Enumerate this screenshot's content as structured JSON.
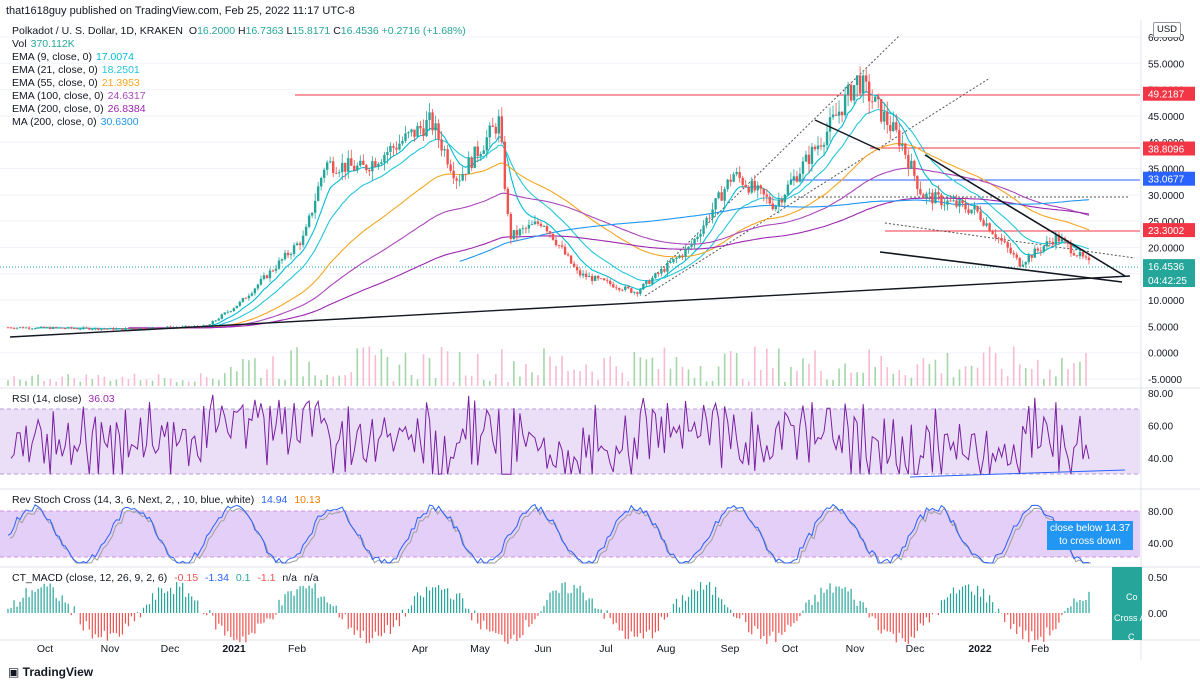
{
  "header": {
    "publisher": "that1618guy published on TradingView.com, Feb 25, 2022 11:17 UTC-8"
  },
  "symbol_line": {
    "title": "Polkadot / U. S. Dollar, 1D, KRAKEN",
    "open_label": "O",
    "open": "16.2000",
    "high_label": "H",
    "high": "16.7363",
    "low_label": "L",
    "low": "15.8171",
    "close_label": "C",
    "close": "16.4536",
    "change": "+0.2716 (+1.68%)"
  },
  "indicators": [
    {
      "label": "Vol",
      "value": "370.112K",
      "color": "#26a69a"
    },
    {
      "label": "EMA (9, close, 0)",
      "value": "17.0074",
      "color": "#00bcd4"
    },
    {
      "label": "EMA (21, close, 0)",
      "value": "18.2501",
      "color": "#26c6da"
    },
    {
      "label": "EMA (55, close, 0)",
      "value": "21.3953",
      "color": "#f5a623"
    },
    {
      "label": "EMA (100, close, 0)",
      "value": "24.6317",
      "color": "#ab47bc"
    },
    {
      "label": "EMA (200, close, 0)",
      "value": "26.8384",
      "color": "#9c27b0"
    },
    {
      "label": "MA (200, close, 0)",
      "value": "30.6300",
      "color": "#2196f3"
    }
  ],
  "currency_button": "USD",
  "price_axis": {
    "ticks": [
      "60.0000",
      "55.0000",
      "50.0000",
      "45.0000",
      "40.0000",
      "35.0000",
      "30.0000",
      "25.0000",
      "20.0000",
      "15.0000",
      "10.0000",
      "5.0000",
      "0.0000",
      "-5.0000"
    ],
    "badges": [
      {
        "text": "49.2187",
        "color": "#f23645"
      },
      {
        "text": "38.8096",
        "color": "#f23645"
      },
      {
        "text": "33.0677",
        "color": "#2962ff"
      },
      {
        "text": "23.3002",
        "color": "#f23645"
      },
      {
        "text": "16.4536",
        "color": "#26a69a"
      },
      {
        "text": "04:42:25",
        "color": "#26a69a"
      }
    ]
  },
  "rsi": {
    "title": "RSI (14, close)",
    "value": "36.03",
    "ticks": [
      "80.00",
      "60.00",
      "40.00"
    ]
  },
  "stoch": {
    "title": "Rev Stoch Cross (14, 3, 6, Next, 2, , 10, blue, white)",
    "value1": "14.94",
    "value2": "10.13",
    "ticks": [
      "80.00",
      "40.00"
    ],
    "note_line1": "close below 14.37",
    "note_line2": "to cross down"
  },
  "macd": {
    "title": "CT_MACD (close, 12, 26, 9, 2, 6)",
    "v1": "-0.15",
    "v2": "-1.34",
    "v3": "0.1",
    "v4": "-1.1",
    "v5": "n/a",
    "v6": "n/a",
    "ticks": [
      "0.50",
      "0.00"
    ],
    "side_labels": [
      "Co",
      "Cross A",
      "C"
    ]
  },
  "time_axis": [
    "Oct",
    "Nov",
    "Dec",
    "2021",
    "Feb",
    "Apr",
    "May",
    "Jun",
    "Jul",
    "Aug",
    "Sep",
    "Oct",
    "Nov",
    "Dec",
    "2022",
    "Feb"
  ],
  "footer": {
    "brand": "TradingView"
  },
  "chart_data": {
    "type": "candlestick",
    "title": "Polkadot / U. S. Dollar, 1D, KRAKEN",
    "ylim": [
      -5,
      60
    ],
    "close_path": {
      "x": [
        "2020-09-20",
        "2020-11-15",
        "2020-12-25",
        "2021-01-10",
        "2021-02-10",
        "2021-02-20",
        "2021-03-10",
        "2021-04-12",
        "2021-04-25",
        "2021-05-15",
        "2021-05-20",
        "2021-06-05",
        "2021-06-22",
        "2021-07-20",
        "2021-08-15",
        "2021-09-05",
        "2021-09-25",
        "2021-10-20",
        "2021-11-04",
        "2021-11-25",
        "2021-12-05",
        "2021-12-31",
        "2022-01-21",
        "2022-02-08",
        "2022-02-25"
      ],
      "y": [
        4.8,
        4.5,
        5.0,
        9.5,
        22.0,
        36.0,
        35.0,
        44.0,
        33.0,
        44.0,
        22.0,
        25.0,
        15.0,
        11.5,
        20.0,
        34.0,
        28.0,
        42.0,
        52.0,
        40.0,
        30.0,
        27.0,
        17.0,
        22.0,
        16.4536
      ]
    },
    "horizontal_levels": [
      49.2187,
      38.8096,
      33.0677,
      23.3002
    ],
    "last_close": 16.4536,
    "rsi_last": 36.03,
    "rsi_range": [
      20,
      90
    ]
  }
}
